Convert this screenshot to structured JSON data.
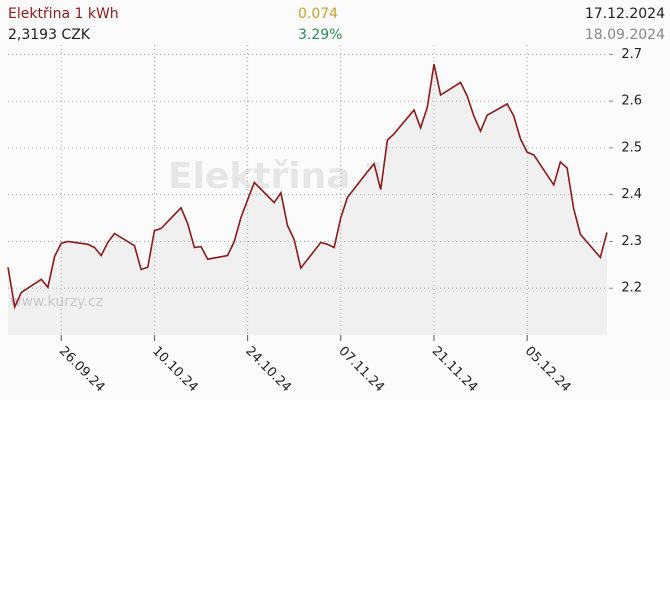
{
  "chart_data": {
    "type": "line",
    "title": "Elektřina 1 kWh",
    "price": "2,3193 CZK",
    "change": "0.074",
    "change_pct": "3.29%",
    "date_end": "17.12.2024",
    "date_start": "18.09.2024",
    "watermark": "www.kurzy.cz",
    "x": [
      "2024-09-18",
      "2024-09-19",
      "2024-09-20",
      "2024-09-23",
      "2024-09-24",
      "2024-09-25",
      "2024-09-26",
      "2024-09-27",
      "2024-09-30",
      "2024-10-01",
      "2024-10-02",
      "2024-10-03",
      "2024-10-04",
      "2024-10-07",
      "2024-10-08",
      "2024-10-09",
      "2024-10-10",
      "2024-10-11",
      "2024-10-14",
      "2024-10-15",
      "2024-10-16",
      "2024-10-17",
      "2024-10-18",
      "2024-10-21",
      "2024-10-22",
      "2024-10-23",
      "2024-10-24",
      "2024-10-25",
      "2024-10-28",
      "2024-10-29",
      "2024-10-30",
      "2024-10-31",
      "2024-11-01",
      "2024-11-04",
      "2024-11-05",
      "2024-11-06",
      "2024-11-07",
      "2024-11-08",
      "2024-11-11",
      "2024-11-12",
      "2024-11-13",
      "2024-11-14",
      "2024-11-15",
      "2024-11-18",
      "2024-11-19",
      "2024-11-20",
      "2024-11-21",
      "2024-11-22",
      "2024-11-25",
      "2024-11-26",
      "2024-11-27",
      "2024-11-28",
      "2024-11-29",
      "2024-12-02",
      "2024-12-03",
      "2024-12-04",
      "2024-12-05",
      "2024-12-06",
      "2024-12-09",
      "2024-12-10",
      "2024-12-11",
      "2024-12-12",
      "2024-12-13",
      "2024-12-16",
      "2024-12-17"
    ],
    "series": [
      {
        "name": "Elektřina 1 kWh",
        "color": "#8b1a1a",
        "values": [
          2.245,
          2.16,
          2.191,
          2.219,
          2.202,
          2.268,
          2.296,
          2.3,
          2.294,
          2.287,
          2.27,
          2.298,
          2.317,
          2.291,
          2.24,
          2.245,
          2.323,
          2.328,
          2.372,
          2.338,
          2.287,
          2.289,
          2.262,
          2.27,
          2.3,
          2.351,
          2.389,
          2.426,
          2.383,
          2.404,
          2.334,
          2.304,
          2.243,
          2.298,
          2.294,
          2.287,
          2.351,
          2.394,
          2.449,
          2.466,
          2.411,
          2.517,
          2.53,
          2.581,
          2.543,
          2.587,
          2.679,
          2.613,
          2.64,
          2.611,
          2.568,
          2.536,
          2.57,
          2.594,
          2.568,
          2.519,
          2.491,
          2.485,
          2.421,
          2.47,
          2.457,
          2.37,
          2.315,
          2.266,
          2.3193
        ]
      }
    ],
    "xlim": [
      "2024-09-18",
      "2024-12-17"
    ],
    "xticks": [
      {
        "value": "2024-09-26",
        "label": "26.09.24"
      },
      {
        "value": "2024-10-10",
        "label": "10.10.24"
      },
      {
        "value": "2024-10-24",
        "label": "24.10.24"
      },
      {
        "value": "2024-11-07",
        "label": "07.11.24"
      },
      {
        "value": "2024-11-21",
        "label": "21.11.24"
      },
      {
        "value": "2024-12-05",
        "label": "05.12.24"
      }
    ],
    "ylim": [
      2.1,
      2.72
    ],
    "yticks": [
      2.2,
      2.3,
      2.4,
      2.5,
      2.6,
      2.7
    ],
    "grid": true
  }
}
